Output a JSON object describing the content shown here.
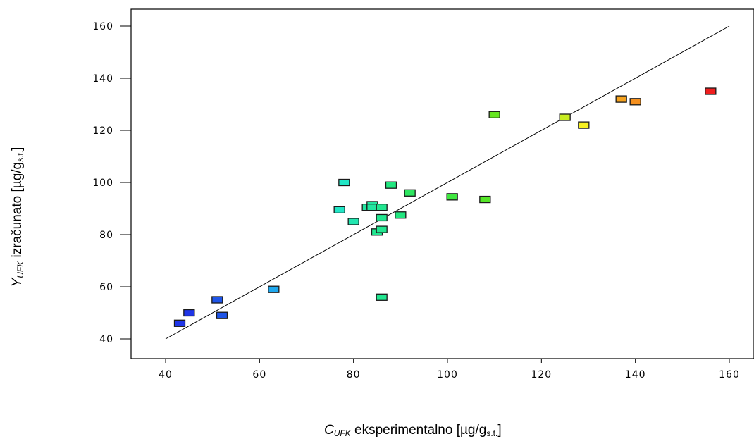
{
  "chart_data": {
    "type": "scatter",
    "xlabel": {
      "symbol": "C",
      "subscript": "UFK",
      "text": " eksperimentalno [µg/g",
      "unit_subscript": "s.t.",
      "close": "]"
    },
    "ylabel": {
      "symbol": "Y",
      "subscript": "UFK",
      "text": " izračunato [µg/g",
      "unit_subscript": "s.t.",
      "close": "]"
    },
    "xlim": [
      33,
      165
    ],
    "ylim": [
      33,
      166
    ],
    "x_ticks": [
      40,
      60,
      80,
      100,
      120,
      140,
      160
    ],
    "y_ticks": [
      40,
      60,
      80,
      100,
      120,
      140,
      160
    ],
    "grid": false,
    "reference_line": {
      "x": [
        40,
        160
      ],
      "y": [
        40,
        160
      ]
    },
    "points": [
      {
        "x": 43,
        "y": 46,
        "color": "#1f35e8"
      },
      {
        "x": 45,
        "y": 50,
        "color": "#1f35e8"
      },
      {
        "x": 51,
        "y": 55,
        "color": "#1f55e8"
      },
      {
        "x": 52,
        "y": 49,
        "color": "#1f55e8"
      },
      {
        "x": 63,
        "y": 59,
        "color": "#1fa8ee"
      },
      {
        "x": 77,
        "y": 89.5,
        "color": "#22e6c6"
      },
      {
        "x": 78,
        "y": 100,
        "color": "#22e6c6"
      },
      {
        "x": 80,
        "y": 85,
        "color": "#22e6b0"
      },
      {
        "x": 83,
        "y": 90.5,
        "color": "#22e6a0"
      },
      {
        "x": 84,
        "y": 91.5,
        "color": "#22e6a0"
      },
      {
        "x": 84,
        "y": 90.5,
        "color": "#22e6a0"
      },
      {
        "x": 85,
        "y": 81,
        "color": "#22e690"
      },
      {
        "x": 86,
        "y": 90.5,
        "color": "#22e690"
      },
      {
        "x": 86,
        "y": 86.5,
        "color": "#22e690"
      },
      {
        "x": 86,
        "y": 82,
        "color": "#22e690"
      },
      {
        "x": 86,
        "y": 56,
        "color": "#22e690"
      },
      {
        "x": 88,
        "y": 99,
        "color": "#22e680"
      },
      {
        "x": 90,
        "y": 87.5,
        "color": "#22e680"
      },
      {
        "x": 92,
        "y": 96,
        "color": "#2ee660"
      },
      {
        "x": 101,
        "y": 94.5,
        "color": "#40e640"
      },
      {
        "x": 108,
        "y": 93.5,
        "color": "#55e628"
      },
      {
        "x": 110,
        "y": 126,
        "color": "#66e620"
      },
      {
        "x": 125,
        "y": 125,
        "color": "#c8ec20"
      },
      {
        "x": 129,
        "y": 122,
        "color": "#f6f020"
      },
      {
        "x": 137,
        "y": 132,
        "color": "#f5a21e"
      },
      {
        "x": 140,
        "y": 131,
        "color": "#f5901e"
      },
      {
        "x": 156,
        "y": 135,
        "color": "#f01e1e"
      }
    ]
  }
}
